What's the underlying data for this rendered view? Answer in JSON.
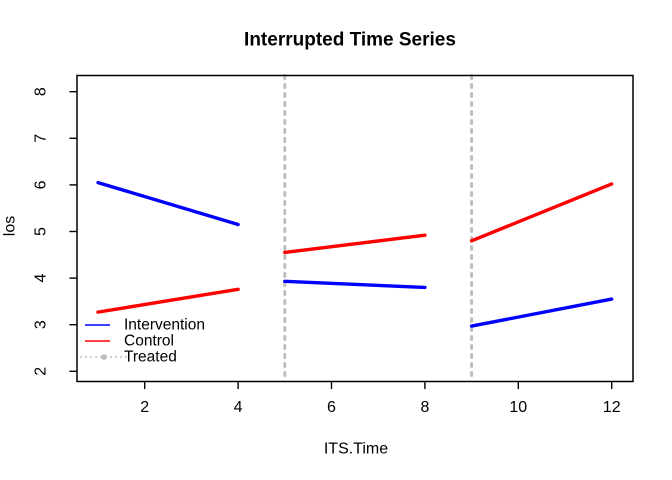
{
  "window": {
    "background": "#ffffff",
    "foreground": "#000000"
  },
  "chart_data": {
    "type": "line",
    "title": "Interrupted Time Series",
    "xlabel": "ITS.Time",
    "ylabel": "los",
    "xlim": [
      1,
      12
    ],
    "ylim": [
      2,
      8
    ],
    "x_ticks": [
      2,
      4,
      6,
      8,
      10,
      12
    ],
    "y_ticks": [
      2,
      3,
      4,
      5,
      6,
      7,
      8
    ],
    "grid": false,
    "box": true,
    "legend_position": "bottomleft",
    "series": [
      {
        "name": "Intervention",
        "color": "#0000FF",
        "style": "solid",
        "line_width": 3.4,
        "segments": [
          [
            [
              1,
              6.05
            ],
            [
              4,
              5.15
            ]
          ],
          [
            [
              5,
              3.93
            ],
            [
              8,
              3.8
            ]
          ],
          [
            [
              9,
              2.97
            ],
            [
              12,
              3.55
            ]
          ]
        ]
      },
      {
        "name": "Control",
        "color": "#FF0000",
        "style": "solid",
        "line_width": 3.4,
        "segments": [
          [
            [
              1,
              3.27
            ],
            [
              4,
              3.76
            ]
          ],
          [
            [
              5,
              4.55
            ],
            [
              8,
              4.92
            ]
          ],
          [
            [
              9,
              4.8
            ],
            [
              12,
              6.02
            ]
          ]
        ]
      },
      {
        "name": "Treated",
        "color": "#BEBEBE",
        "style": "dotted",
        "line_width": 3,
        "vlines": [
          5,
          9
        ]
      }
    ],
    "legend": [
      {
        "label": "Intervention",
        "color": "#0000FF",
        "style": "solid",
        "marker": "none"
      },
      {
        "label": "Control",
        "color": "#FF0000",
        "style": "solid",
        "marker": "none"
      },
      {
        "label": "Treated",
        "color": "#BEBEBE",
        "style": "dotted",
        "marker": "circle"
      }
    ]
  }
}
